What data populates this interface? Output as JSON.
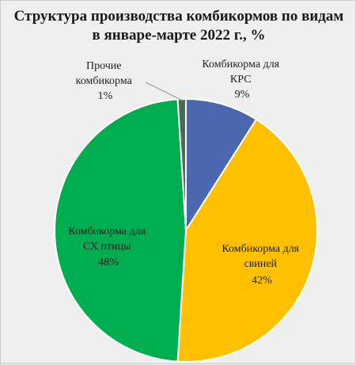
{
  "chart_data": {
    "type": "pie",
    "title_lines": [
      "Структура производства комбикормов по видам",
      "в январе-марте 2022 г., %"
    ],
    "slices": [
      {
        "label_lines": [
          "Комбикорма для",
          "КРС"
        ],
        "value": 9,
        "value_label": "9%",
        "color": "#4a67b0"
      },
      {
        "label_lines": [
          "Комбикорма для",
          "свиней"
        ],
        "value": 42,
        "value_label": "42%",
        "color": "#ffc000"
      },
      {
        "label_lines": [
          "Комбикорма для",
          "СХ птицы"
        ],
        "value": 48,
        "value_label": "48%",
        "color": "#00ad4e"
      },
      {
        "label_lines": [
          "Прочие",
          "комбикорма"
        ],
        "value": 1,
        "value_label": "1%",
        "color": "#4a6b52"
      }
    ],
    "start_angle_deg": 0,
    "direction": "clockwise"
  }
}
